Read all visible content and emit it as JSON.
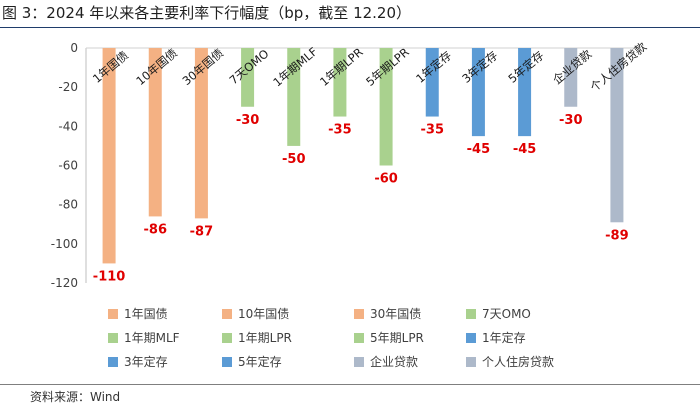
{
  "title": "图 3：2024 年以来各主要利率下行幅度（bp，截至 12.20）",
  "source": "资料来源：Wind",
  "chart_data": {
    "type": "bar",
    "ylim": [
      -120,
      0
    ],
    "yticks": [
      0,
      -20,
      -40,
      -60,
      -80,
      -100,
      -120
    ],
    "grid": false,
    "legend": "bottom",
    "categories": [
      "1年国债",
      "10年国债",
      "30年国债",
      "7天OMO",
      "1年期MLF",
      "1年期LPR",
      "5年期LPR",
      "1年定存",
      "3年定存",
      "5年定存",
      "企业贷款",
      "个人住房贷款"
    ],
    "values": [
      -110,
      -86,
      -87,
      -30,
      -50,
      -35,
      -60,
      -35,
      -45,
      -45,
      -30,
      -89
    ],
    "data_labels": [
      "-110",
      "-86",
      "-87",
      "-30",
      "-50",
      "-35",
      "-60",
      "-35",
      "-45",
      "-45",
      "-30",
      "-89"
    ],
    "colors": [
      "#f4b183",
      "#f4b183",
      "#f4b183",
      "#a9d18e",
      "#a9d18e",
      "#a9d18e",
      "#a9d18e",
      "#5b9bd5",
      "#5b9bd5",
      "#5b9bd5",
      "#adb9ca",
      "#adb9ca"
    ]
  }
}
